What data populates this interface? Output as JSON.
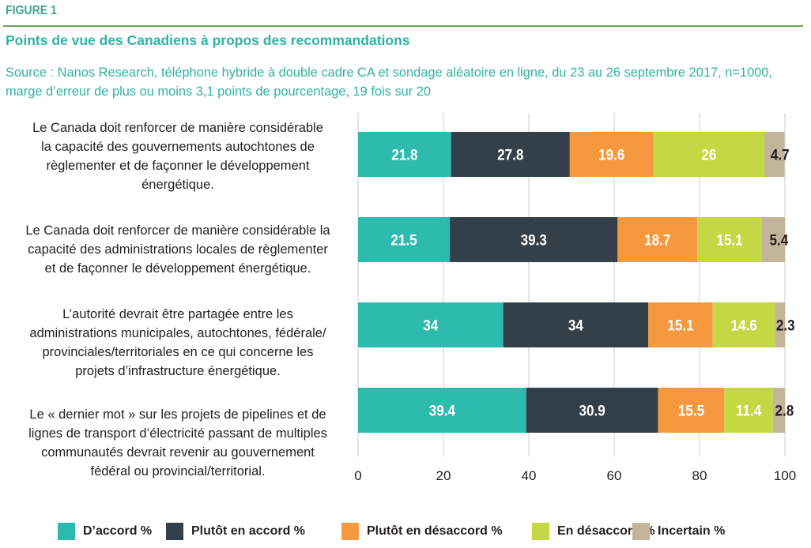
{
  "figure_label": "FIGURE 1",
  "title": "Points de vue des Canadiens à propos des recommandations",
  "source": "Source : Nanos Research, téléphone hybride à double cadre CA et sondage aléatoire en ligne, du 23 au 26 septembre 2017, n=1000, marge d’erreur de plus ou moins 3,1 points de pourcentage, 19 fois sur 20",
  "colors": {
    "accent": "#2fb3a5",
    "rule": "#6ca35a",
    "gridline": "#d9d9d9"
  },
  "chart_data": {
    "type": "bar",
    "orientation": "horizontal",
    "stacked": true,
    "title": "Points de vue des Canadiens à propos des recommandations",
    "xlabel": "",
    "ylabel": "",
    "xlim": [
      0,
      100
    ],
    "x_ticks": [
      "0",
      "20",
      "40",
      "60",
      "80",
      "100"
    ],
    "grid": true,
    "legend_position": "bottom",
    "categories": [
      "Le Canada doit renforcer de manière considérable la capacité des gouvernements autochtones de règlementer et de façonner le développement énergétique.",
      "Le Canada doit renforcer de manière considérable la capacité des administrations locales de règlementer et de façonner le développement énergétique.",
      "L’autorité devrait être partagée entre les administrations municipales, autochtones, fédérale/ provinciales/territoriales en ce qui concerne les projets d’infrastructure énergétique.",
      "Le « dernier mot » sur les projets de pipelines et de lignes de transport d’électricité passant de multiples communautés devrait revenir au gouvernement fédéral ou provincial/territorial."
    ],
    "category_lines": [
      [
        "Le Canada doit renforcer de manière considérable",
        "la capacité des gouvernements autochtones de",
        "règlementer et de façonner le développement",
        "énergétique."
      ],
      [
        "Le Canada doit renforcer de manière considérable la",
        "capacité des administrations locales de règlementer",
        "et de façonner le développement énergétique."
      ],
      [
        "L’autorité devrait être partagée entre les",
        "administrations municipales, autochtones, fédérale/",
        "provinciales/territoriales en ce qui concerne les",
        "projets d’infrastructure énergétique."
      ],
      [
        "Le « dernier mot » sur les projets de pipelines et de",
        "lignes de transport d’électricité passant de multiples",
        "communautés devrait revenir au gouvernement",
        "fédéral ou provincial/territorial."
      ]
    ],
    "series": [
      {
        "name": "D’accord %",
        "color": "#2dbbad",
        "label_color": "#ffffff",
        "values": [
          21.8,
          21.5,
          34,
          39.4
        ],
        "labels": [
          "21.8",
          "21.5",
          "34",
          "39.4"
        ]
      },
      {
        "name": "Plutôt en accord %",
        "color": "#333f49",
        "label_color": "#ffffff",
        "values": [
          27.8,
          39.3,
          34,
          30.9
        ],
        "labels": [
          "27.8",
          "39.3",
          "34",
          "30.9"
        ]
      },
      {
        "name": "Plutôt en désaccord %",
        "color": "#f6983d",
        "label_color": "#ffffff",
        "values": [
          19.6,
          18.7,
          15.1,
          15.5
        ],
        "labels": [
          "19.6",
          "18.7",
          "15.1",
          "15.5"
        ]
      },
      {
        "name": "En désaccord %",
        "color": "#c4d844",
        "label_color": "#ffffff",
        "values": [
          26,
          15.1,
          14.6,
          11.4
        ],
        "labels": [
          "26",
          "15.1",
          "14.6",
          "11.4"
        ]
      },
      {
        "name": "Incertain %",
        "color": "#c3b49c",
        "label_color": "#231f20",
        "values": [
          4.7,
          5.4,
          2.3,
          2.8
        ],
        "labels": [
          "4.7",
          "5.4",
          "2.3",
          "2.8"
        ]
      }
    ]
  }
}
